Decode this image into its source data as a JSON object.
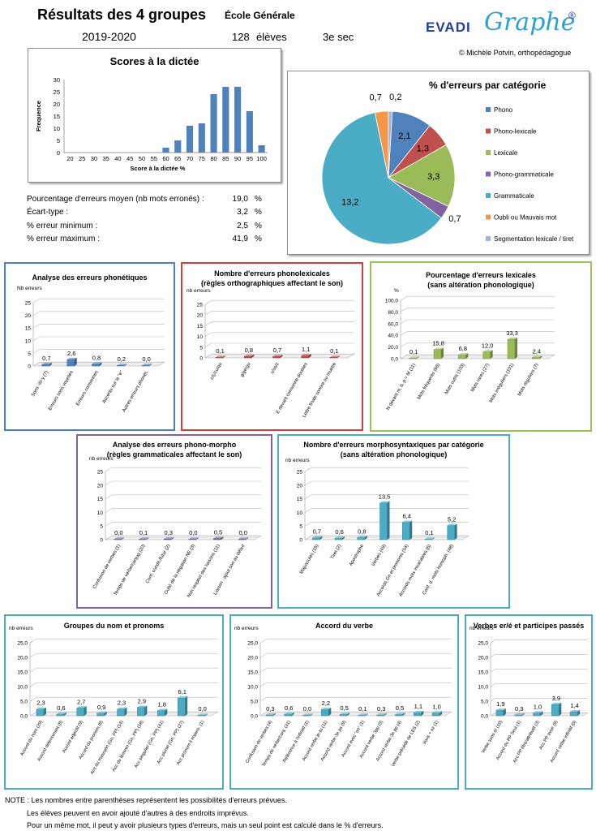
{
  "header": {
    "title": "Résultats des 4 groupes",
    "school": "École Générale",
    "year": "2019-2020",
    "students_count": "128",
    "students_label": "élèves",
    "grade": "3e sec",
    "logo_part1": "EVADI",
    "logo_part2": "Graphe",
    "logo_mark": "®",
    "copyright": "© Michèle Potvin, orthopédagogue"
  },
  "stats": [
    {
      "label": "Pourcentage d'erreurs moyen (nb mots erronés) :",
      "value": "19,0",
      "unit": "%"
    },
    {
      "label": "Écart-type :",
      "value": "3,2",
      "unit": "%"
    },
    {
      "label": "% erreur minimum :",
      "value": "2,5",
      "unit": "%"
    },
    {
      "label": "% erreur maximum :",
      "value": "41,9",
      "unit": "%"
    }
  ],
  "notes": [
    "NOTE : Les nombres entre parenthèses représentent les possibilités d'erreurs prévues.",
    "Les élèves peuvent en avoir ajouté d'autres à des endroits imprévus.",
    "Pour un même mot, il peut y avoir plusieurs types d'erreurs, mais un seul point est calculé dans le % d'erreurs."
  ],
  "chart_data": [
    {
      "id": "dictee",
      "type": "bar",
      "title": "Scores à la dictée",
      "xlabel": "Score à la dictée %",
      "ylabel": "Frequence",
      "categories": [
        "20",
        "25",
        "30",
        "35",
        "40",
        "45",
        "50",
        "55",
        "60",
        "65",
        "70",
        "75",
        "80",
        "85",
        "90",
        "95",
        "100"
      ],
      "values": [
        0,
        0,
        0,
        0,
        0,
        0,
        0,
        0,
        2,
        5,
        11,
        12,
        24,
        27,
        27,
        17,
        3
      ],
      "ylim": [
        0,
        30
      ],
      "yticks": [
        "0",
        "5",
        "10",
        "15",
        "20",
        "25",
        "30"
      ],
      "color": "#4f81bd"
    },
    {
      "id": "pie",
      "type": "pie",
      "title": "% d'erreurs par catégorie",
      "slices": [
        {
          "label": "Phono",
          "value": 2.1,
          "text": "2,1",
          "color": "#4f81bd"
        },
        {
          "label": "Phono-lexicale",
          "value": 1.3,
          "text": "1,3",
          "color": "#c0504d"
        },
        {
          "label": "Lexicale",
          "value": 3.3,
          "text": "3,3",
          "color": "#9bbb59"
        },
        {
          "label": "Phono-grammaticale",
          "value": 0.7,
          "text": "0,7",
          "color": "#8064a2"
        },
        {
          "label": "Grammaticale",
          "value": 13.2,
          "text": "13,2",
          "color": "#4bacc6"
        },
        {
          "label": "Oubli ou Mauvais mot",
          "value": 0.7,
          "text": "0,7",
          "color": "#f79646"
        },
        {
          "label": "Segmentation lexicale / tiret",
          "value": 0.2,
          "text": "0,2",
          "color": "#9fb4e0"
        }
      ]
    },
    {
      "id": "phono",
      "type": "bar",
      "title": "Analyse des erreurs phonétiques",
      "ylabel": "Nb erreurs",
      "categories": [
        "Sons -ill/-y (7)",
        "Erreurs sons voyelles",
        "Erreurs consonnes",
        "Accents sur le \"e\"",
        "Autres erreurs phonét."
      ],
      "values": [
        0.7,
        2.6,
        0.8,
        0.2,
        0.0
      ],
      "labels": [
        "0,7",
        "2,6",
        "0,8",
        "0,2",
        "0,0"
      ],
      "ylim": [
        0,
        25
      ],
      "yticks": [
        "0",
        "5",
        "10",
        "15",
        "20",
        "25"
      ],
      "color": "#4f81bd"
    },
    {
      "id": "phonolex",
      "type": "bar",
      "title": "Nombre d'erreurs phonolexicales",
      "subtitle": "(règles orthographiques affectant le son)",
      "ylabel": "nb erreurs",
      "categories": [
        "c/ç/cu/qu",
        "g/ge/gu",
        "s/ss/z",
        "E devant consonne doubles",
        "Lettre finale sonore ou muette"
      ],
      "values": [
        0.1,
        0.8,
        0.7,
        1.1,
        0.1
      ],
      "labels": [
        "0,1",
        "0,8",
        "0,7",
        "1,1",
        "0,1"
      ],
      "ylim": [
        0,
        25
      ],
      "yticks": [
        "0",
        "5",
        "10",
        "15",
        "20",
        "25"
      ],
      "color": "#c0504d"
    },
    {
      "id": "lex",
      "type": "bar",
      "title": "Pourcentage d'erreurs lexicales",
      "subtitle": "(sans altération phonologique)",
      "ylabel": "%",
      "categories": [
        "N devant m, b, p = M (11)",
        "Mots fréquents (66)",
        "Mots outils (103)",
        "Mots rares (27)",
        "Mots irréguliers (101)",
        "Mots réguliers (7)"
      ],
      "values": [
        0.1,
        15.8,
        6.8,
        12.0,
        33.3,
        2.4
      ],
      "labels": [
        "0,1",
        "15,8",
        "6,8",
        "12,0",
        "33,3",
        "2,4"
      ],
      "ylim": [
        0,
        100
      ],
      "yticks": [
        "0,0",
        "20,0",
        "40,0",
        "60,0",
        "80,0",
        "100,0"
      ],
      "color": "#9bbb59"
    },
    {
      "id": "phonomorpho",
      "type": "bar",
      "title": "Analyse des erreurs phono-morpho",
      "subtitle": "(règles grammaticales affectant le son)",
      "ylabel": "nb erreurs",
      "categories": [
        "Confusion de verbes (1)",
        "Temps de verbe/conjug (20)",
        "Conf. condit./futur (2)",
        "Oubli de la négation NE (3)",
        "Non respect des liaisons (11)",
        "Liaison : ajout son au début"
      ],
      "values": [
        0.0,
        0.1,
        0.3,
        0.0,
        0.5,
        0.0
      ],
      "labels": [
        "0,0",
        "0,1",
        "0,3",
        "0,0",
        "0,5",
        "0,0"
      ],
      "ylim": [
        0,
        25
      ],
      "yticks": [
        "0",
        "5",
        "10",
        "15",
        "20",
        "25"
      ],
      "color": "#8064a2"
    },
    {
      "id": "morphosyn",
      "type": "bar",
      "title": "Nombre d'erreurs morphosyntaxiques par catégorie",
      "subtitle": "(sans altération phonologique)",
      "ylabel": "nb erreurs",
      "categories": [
        "Majuscules (15)",
        "Tiret (2)",
        "Apostrophe",
        "Verbes (49)",
        "Accords Gn et pronoms (54)",
        "Accords mots invariables (6)",
        "Conf. d. mots homoph. (48)"
      ],
      "values": [
        0.7,
        0.6,
        0.8,
        13.5,
        6.4,
        0.1,
        5.2
      ],
      "labels": [
        "0,7",
        "0,6",
        "0,8",
        "13,5",
        "6,4",
        "0,1",
        "5,2"
      ],
      "ylim": [
        0,
        25
      ],
      "yticks": [
        "0",
        "5",
        "10",
        "15",
        "20",
        "25"
      ],
      "color": "#4bacc6"
    },
    {
      "id": "gn",
      "type": "bar",
      "title": "Groupes du nom et pronoms",
      "ylabel": "nb erreurs",
      "categories": [
        "Accord du nom (29)",
        "Accord déterminant (8)",
        "Accord adjectif (9)",
        "Accord du pronom (8)",
        "Acc du masculin (Gn, PP) (14)",
        "Acc du féminin (Gn, PP) (18)",
        "Acc singulier (Gn, PP) (41)",
        "Acc pluriel (Gn, PP) (27)",
        "Acc pronom il impers. (1)"
      ],
      "values": [
        2.3,
        0.6,
        2.7,
        0.9,
        2.3,
        2.9,
        1.8,
        6.1,
        0.0
      ],
      "labels": [
        "2,3",
        "0,6",
        "2,7",
        "0,9",
        "2,3",
        "2,9",
        "1,8",
        "6,1",
        "0,0"
      ],
      "ylim": [
        0,
        25
      ],
      "yticks": [
        "0,0",
        "5,0",
        "10,0",
        "15,0",
        "20,0",
        "25,0"
      ],
      "color": "#4bacc6"
    },
    {
      "id": "verbe",
      "type": "bar",
      "title": "Accord du verbe",
      "ylabel": "nb erreurs",
      "categories": [
        "Confusion de verbes (4)",
        "Temps de verbe/conj. (31)",
        "Référence à l'infinitif (1)",
        "Accord verbe je-tu (11)",
        "Accord verbe 3e ps (9)",
        "Accord avec \"on\" (1)",
        "Accord verbe 3pp (3)",
        "Accord verbe 3e pp (4)",
        "Verbe précédé de LES (2)",
        "Vous + ez (1)"
      ],
      "values": [
        0.3,
        0.6,
        0.0,
        2.2,
        0.5,
        0.1,
        0.3,
        0.5,
        1.1,
        1.0
      ],
      "labels": [
        "0,3",
        "0,6",
        "0,0",
        "2,2",
        "0,5",
        "0,1",
        "0,3",
        "0,5",
        "1,1",
        "1,0"
      ],
      "ylim": [
        0,
        25
      ],
      "yticks": [
        "0,0",
        "5,0",
        "10,0",
        "15,0",
        "20,0",
        "25,0"
      ],
      "color": "#4bacc6"
    },
    {
      "id": "pp",
      "type": "bar",
      "title": "Verbes er/é et participes passés",
      "ylabel": "nb erreurs",
      "categories": [
        "Verbe sons é/ (10)",
        "Accord du PP Seul (1)",
        "Acc PP être/attributif (3)",
        "Acc PP avoir (9)",
        "Accord verbe infinitif (6)"
      ],
      "values": [
        1.9,
        0.3,
        1.0,
        3.9,
        1.4
      ],
      "labels": [
        "1,9",
        "0,3",
        "1,0",
        "3,9",
        "1,4"
      ],
      "ylim": [
        0,
        25
      ],
      "yticks": [
        "0,0",
        "5,0",
        "10,0",
        "15,0",
        "20,0",
        "25,0"
      ],
      "color": "#4bacc6"
    }
  ]
}
